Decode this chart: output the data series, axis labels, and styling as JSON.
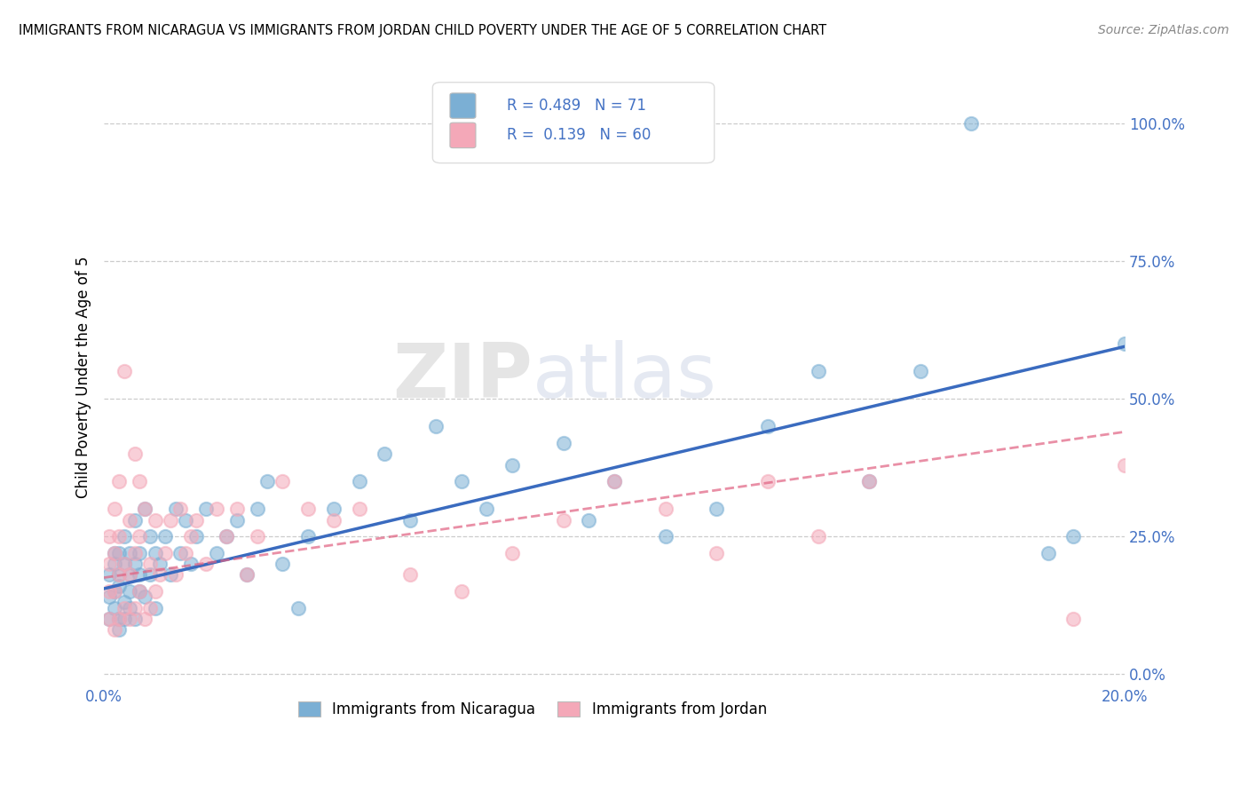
{
  "title": "IMMIGRANTS FROM NICARAGUA VS IMMIGRANTS FROM JORDAN CHILD POVERTY UNDER THE AGE OF 5 CORRELATION CHART",
  "source": "Source: ZipAtlas.com",
  "ylabel": "Child Poverty Under the Age of 5",
  "xlim": [
    0.0,
    0.2
  ],
  "ylim": [
    -0.02,
    1.1
  ],
  "ytick_labels": [
    "0.0%",
    "25.0%",
    "50.0%",
    "75.0%",
    "100.0%"
  ],
  "ytick_vals": [
    0.0,
    0.25,
    0.5,
    0.75,
    1.0
  ],
  "xtick_labels": [
    "0.0%",
    "",
    "",
    "",
    "20.0%"
  ],
  "xtick_vals": [
    0.0,
    0.05,
    0.1,
    0.15,
    0.2
  ],
  "legend1_label": "Immigrants from Nicaragua",
  "legend2_label": "Immigrants from Jordan",
  "R_nicaragua": 0.489,
  "N_nicaragua": 71,
  "R_jordan": 0.139,
  "N_jordan": 60,
  "color_nicaragua": "#7bafd4",
  "color_jordan": "#f4a8b8",
  "line_nicaragua": "#3a6bbf",
  "line_jordan": "#e06080",
  "line_jordan_dash": "#e0a0b0",
  "watermark_zip": "ZIP",
  "watermark_atlas": "atlas",
  "nicaragua_x": [
    0.001,
    0.001,
    0.001,
    0.002,
    0.002,
    0.002,
    0.002,
    0.003,
    0.003,
    0.003,
    0.003,
    0.003,
    0.004,
    0.004,
    0.004,
    0.004,
    0.005,
    0.005,
    0.005,
    0.005,
    0.006,
    0.006,
    0.006,
    0.007,
    0.007,
    0.007,
    0.008,
    0.008,
    0.009,
    0.009,
    0.01,
    0.01,
    0.011,
    0.012,
    0.013,
    0.014,
    0.015,
    0.016,
    0.017,
    0.018,
    0.02,
    0.022,
    0.024,
    0.026,
    0.028,
    0.03,
    0.032,
    0.035,
    0.038,
    0.04,
    0.045,
    0.05,
    0.055,
    0.06,
    0.065,
    0.07,
    0.075,
    0.08,
    0.09,
    0.095,
    0.1,
    0.11,
    0.12,
    0.13,
    0.14,
    0.15,
    0.16,
    0.17,
    0.185,
    0.19,
    0.2
  ],
  "nicaragua_y": [
    0.14,
    0.18,
    0.1,
    0.15,
    0.2,
    0.12,
    0.22,
    0.1,
    0.16,
    0.22,
    0.08,
    0.18,
    0.13,
    0.2,
    0.1,
    0.25,
    0.12,
    0.18,
    0.15,
    0.22,
    0.1,
    0.2,
    0.28,
    0.15,
    0.22,
    0.18,
    0.14,
    0.3,
    0.18,
    0.25,
    0.12,
    0.22,
    0.2,
    0.25,
    0.18,
    0.3,
    0.22,
    0.28,
    0.2,
    0.25,
    0.3,
    0.22,
    0.25,
    0.28,
    0.18,
    0.3,
    0.35,
    0.2,
    0.12,
    0.25,
    0.3,
    0.35,
    0.4,
    0.28,
    0.45,
    0.35,
    0.3,
    0.38,
    0.42,
    0.28,
    0.35,
    0.25,
    0.3,
    0.45,
    0.55,
    0.35,
    0.55,
    1.0,
    0.22,
    0.25,
    0.6
  ],
  "jordan_x": [
    0.001,
    0.001,
    0.001,
    0.001,
    0.002,
    0.002,
    0.002,
    0.002,
    0.003,
    0.003,
    0.003,
    0.003,
    0.004,
    0.004,
    0.004,
    0.005,
    0.005,
    0.005,
    0.006,
    0.006,
    0.006,
    0.007,
    0.007,
    0.007,
    0.008,
    0.008,
    0.009,
    0.009,
    0.01,
    0.01,
    0.011,
    0.012,
    0.013,
    0.014,
    0.015,
    0.016,
    0.017,
    0.018,
    0.02,
    0.022,
    0.024,
    0.026,
    0.028,
    0.03,
    0.035,
    0.04,
    0.045,
    0.05,
    0.06,
    0.07,
    0.08,
    0.09,
    0.1,
    0.11,
    0.12,
    0.13,
    0.14,
    0.15,
    0.19,
    0.2
  ],
  "jordan_y": [
    0.1,
    0.15,
    0.2,
    0.25,
    0.08,
    0.15,
    0.22,
    0.3,
    0.1,
    0.18,
    0.25,
    0.35,
    0.12,
    0.2,
    0.55,
    0.1,
    0.18,
    0.28,
    0.12,
    0.22,
    0.4,
    0.15,
    0.25,
    0.35,
    0.1,
    0.3,
    0.12,
    0.2,
    0.15,
    0.28,
    0.18,
    0.22,
    0.28,
    0.18,
    0.3,
    0.22,
    0.25,
    0.28,
    0.2,
    0.3,
    0.25,
    0.3,
    0.18,
    0.25,
    0.35,
    0.3,
    0.28,
    0.3,
    0.18,
    0.15,
    0.22,
    0.28,
    0.35,
    0.3,
    0.22,
    0.35,
    0.25,
    0.35,
    0.1,
    0.38
  ],
  "nic_line_x0": 0.0,
  "nic_line_y0": 0.155,
  "nic_line_x1": 0.2,
  "nic_line_y1": 0.595,
  "jor_line_x0": 0.0,
  "jor_line_y0": 0.175,
  "jor_line_x1": 0.2,
  "jor_line_y1": 0.44
}
